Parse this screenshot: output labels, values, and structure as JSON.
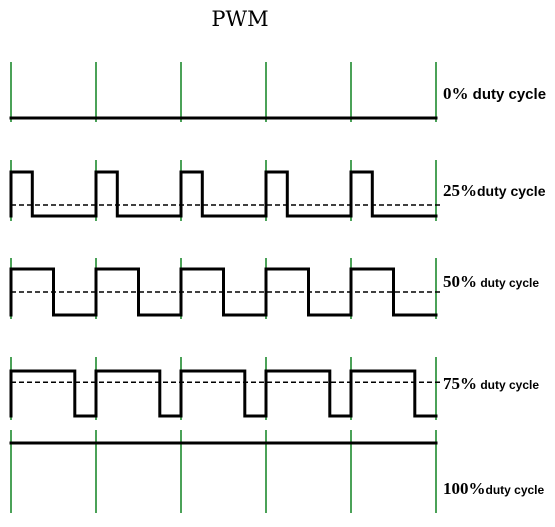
{
  "title": "PWM",
  "colors": {
    "wave": "#000000",
    "clock_marker": "#1e8a2e",
    "average_line": "#000000"
  },
  "rows": [
    {
      "duty": 0,
      "pct_label": "0%",
      "text_label": " duty cycle",
      "periods": 5
    },
    {
      "duty": 25,
      "pct_label": "25%",
      "text_label": "duty cycle",
      "periods": 5
    },
    {
      "duty": 50,
      "pct_label": "50%",
      "text_label": " duty cycle",
      "periods": 5
    },
    {
      "duty": 75,
      "pct_label": "75%",
      "text_label": " duty cycle",
      "periods": 5
    },
    {
      "duty": 100,
      "pct_label": "100%",
      "text_label": "duty cycle",
      "periods": 5
    }
  ]
}
